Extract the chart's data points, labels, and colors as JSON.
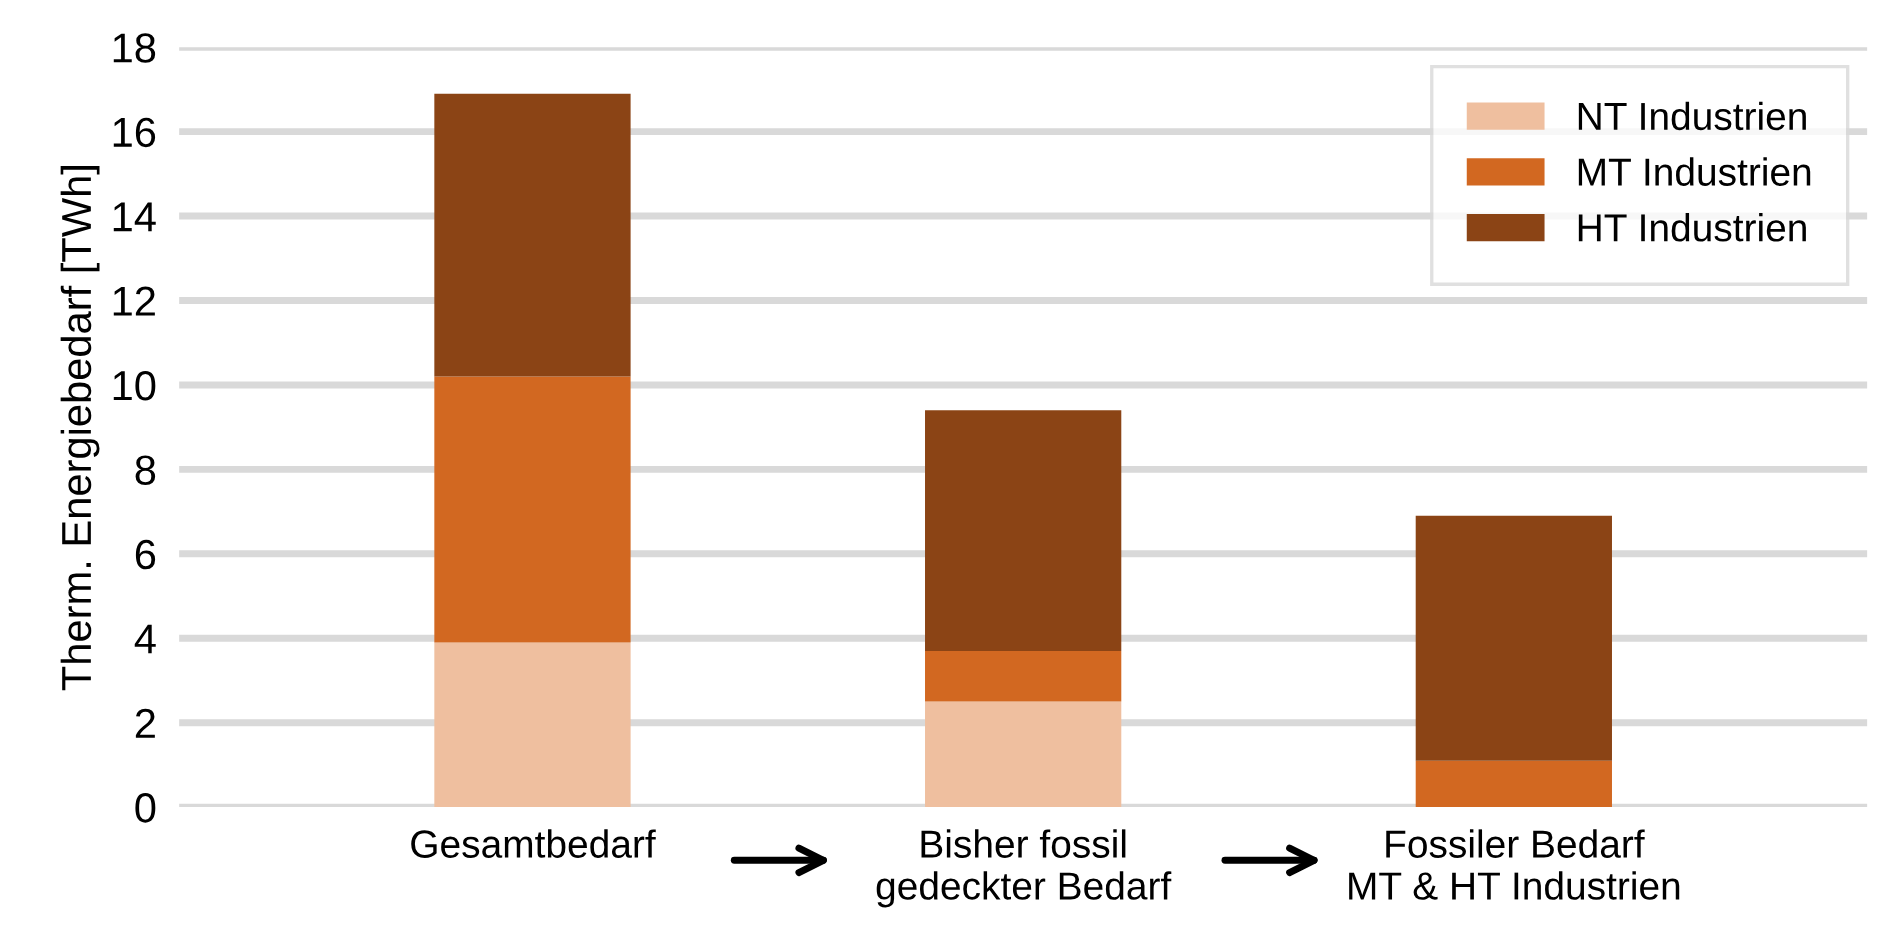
{
  "chart_data": {
    "type": "bar",
    "stacked": true,
    "ylabel": "Therm. Energiebedarf [TWh]",
    "categories": [
      "Gesamtbedarf",
      "Bisher fossil\ngedeckter Bedarf",
      "Fossiler Bedarf\nMT & HT Industrien"
    ],
    "series": [
      {
        "name": "NT Industrien",
        "color": "#efbf9f",
        "values": [
          3.9,
          2.5,
          0
        ]
      },
      {
        "name": "MT Industrien",
        "color": "#d26821",
        "values": [
          6.3,
          1.2,
          1.1
        ]
      },
      {
        "name": "HT Industrien",
        "color": "#8b4415",
        "values": [
          6.7,
          5.7,
          5.8
        ]
      }
    ],
    "ylim": [
      0,
      18
    ],
    "yticks": [
      0,
      2,
      4,
      6,
      8,
      10,
      12,
      14,
      16,
      18
    ],
    "grid": "y",
    "legend": "top right"
  }
}
